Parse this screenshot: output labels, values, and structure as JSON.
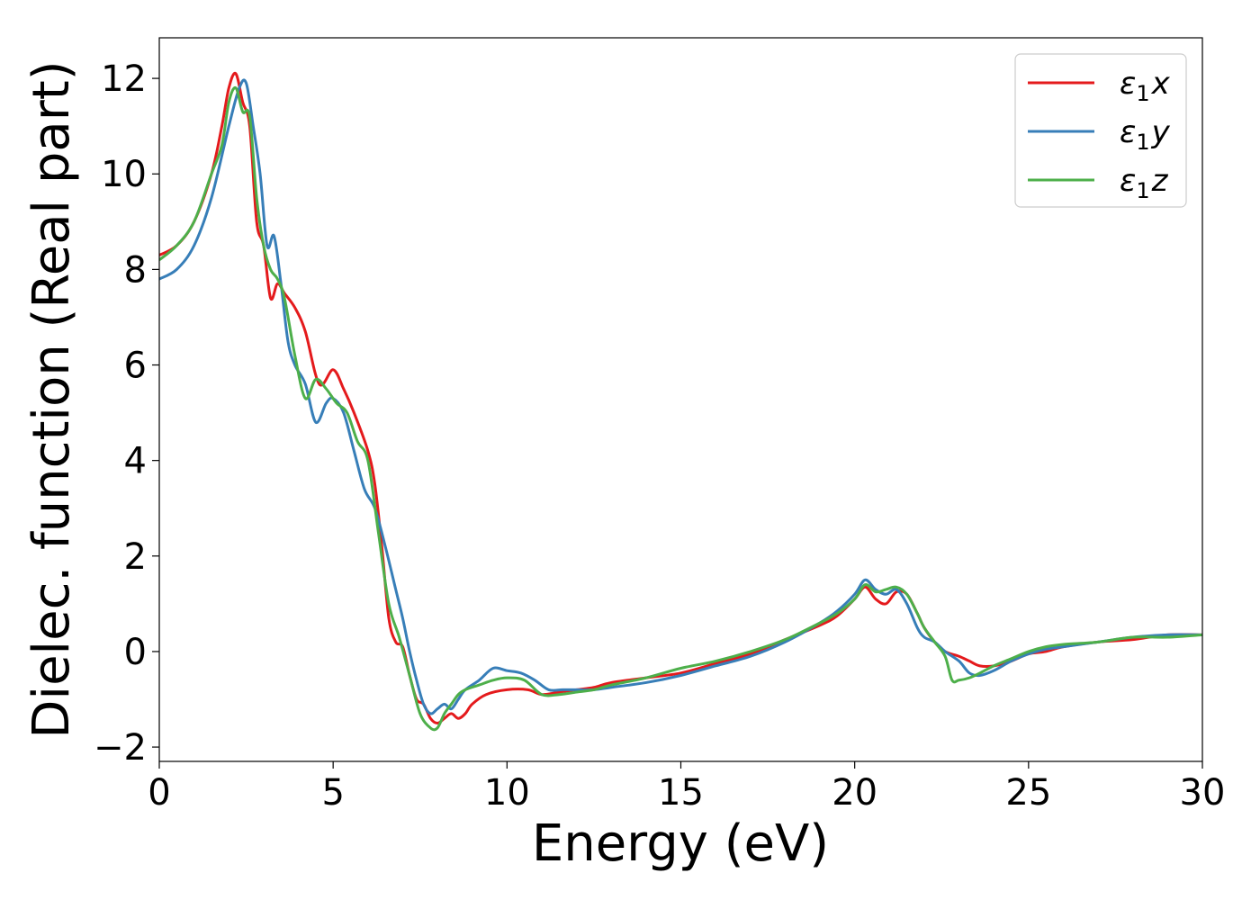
{
  "chart_data": {
    "type": "line",
    "title": "",
    "xlabel": "Energy (eV)",
    "ylabel": "Dielec. function (Real part)",
    "xlim": [
      0,
      30
    ],
    "ylim": [
      -2.3,
      12.85
    ],
    "xticks": [
      0,
      5,
      10,
      15,
      20,
      25,
      30
    ],
    "yticks": [
      -2,
      0,
      2,
      4,
      6,
      8,
      10,
      12
    ],
    "ytick_labels": [
      "−2",
      "0",
      "2",
      "4",
      "6",
      "8",
      "10",
      "12"
    ],
    "xtick_labels": [
      "0",
      "5",
      "10",
      "15",
      "20",
      "25",
      "30"
    ],
    "grid": false,
    "legend_position": "top-right",
    "series": [
      {
        "name": "ε₁x",
        "legend": {
          "base": "ε",
          "sub": "1",
          "var": "x"
        },
        "color": "#e41a1c",
        "x": [
          0,
          0.5,
          1.0,
          1.5,
          1.8,
          2.0,
          2.2,
          2.4,
          2.6,
          2.8,
          3.0,
          3.2,
          3.4,
          3.6,
          3.9,
          4.2,
          4.6,
          5.0,
          5.3,
          5.6,
          6.0,
          6.2,
          6.4,
          6.6,
          6.8,
          7.0,
          7.2,
          7.4,
          7.6,
          7.8,
          8.0,
          8.2,
          8.4,
          8.6,
          8.8,
          9.0,
          9.4,
          10.0,
          10.6,
          11.0,
          11.5,
          12.0,
          12.5,
          13.0,
          14.0,
          15.0,
          16.0,
          17.0,
          18.0,
          19.0,
          19.5,
          20.0,
          20.3,
          20.6,
          20.9,
          21.2,
          21.5,
          21.8,
          22.0,
          22.3,
          22.6,
          23.0,
          23.3,
          23.6,
          24.0,
          24.5,
          25.0,
          25.5,
          26.0,
          27.0,
          28.0,
          29.0,
          30.0
        ],
        "y": [
          8.3,
          8.5,
          9.0,
          10.0,
          11.0,
          11.8,
          12.1,
          11.5,
          11.0,
          9.0,
          8.5,
          7.4,
          7.7,
          7.5,
          7.2,
          6.7,
          5.6,
          5.9,
          5.5,
          5.0,
          4.2,
          3.5,
          2.2,
          0.7,
          0.2,
          0.1,
          -0.5,
          -1.0,
          -1.1,
          -1.4,
          -1.5,
          -1.4,
          -1.3,
          -1.4,
          -1.3,
          -1.1,
          -0.9,
          -0.8,
          -0.8,
          -0.9,
          -0.85,
          -0.8,
          -0.75,
          -0.65,
          -0.55,
          -0.45,
          -0.25,
          -0.05,
          0.25,
          0.55,
          0.75,
          1.1,
          1.35,
          1.1,
          1.0,
          1.25,
          1.2,
          0.8,
          0.5,
          0.2,
          0.0,
          -0.1,
          -0.2,
          -0.3,
          -0.3,
          -0.2,
          -0.05,
          0.0,
          0.1,
          0.2,
          0.25,
          0.35,
          0.35
        ]
      },
      {
        "name": "ε₁y",
        "legend": {
          "base": "ε",
          "sub": "1",
          "var": "y"
        },
        "color": "#377eb8",
        "x": [
          0,
          0.5,
          1.0,
          1.5,
          2.0,
          2.3,
          2.5,
          2.7,
          2.9,
          3.1,
          3.3,
          3.5,
          3.7,
          3.9,
          4.2,
          4.5,
          4.8,
          5.0,
          5.3,
          5.6,
          5.9,
          6.2,
          6.5,
          6.8,
          7.0,
          7.2,
          7.4,
          7.6,
          7.8,
          8.0,
          8.2,
          8.4,
          8.6,
          8.8,
          9.2,
          9.6,
          10.0,
          10.4,
          10.8,
          11.2,
          11.6,
          12.0,
          12.5,
          13.0,
          14.0,
          15.0,
          16.0,
          17.0,
          18.0,
          19.0,
          19.5,
          20.0,
          20.3,
          20.6,
          20.9,
          21.2,
          21.5,
          21.8,
          22.0,
          22.3,
          22.6,
          23.0,
          23.3,
          23.6,
          24.0,
          24.5,
          25.0,
          25.5,
          26.0,
          27.0,
          28.0,
          29.0,
          30.0
        ],
        "y": [
          7.8,
          8.0,
          8.5,
          9.5,
          11.0,
          11.8,
          11.9,
          11.0,
          10.0,
          8.5,
          8.7,
          7.7,
          6.5,
          6.0,
          5.6,
          4.8,
          5.2,
          5.3,
          5.0,
          4.2,
          3.4,
          3.0,
          2.2,
          1.3,
          0.7,
          0.0,
          -0.6,
          -1.1,
          -1.3,
          -1.2,
          -1.1,
          -1.2,
          -1.0,
          -0.8,
          -0.6,
          -0.35,
          -0.4,
          -0.45,
          -0.6,
          -0.8,
          -0.8,
          -0.8,
          -0.8,
          -0.75,
          -0.65,
          -0.5,
          -0.3,
          -0.1,
          0.2,
          0.6,
          0.85,
          1.2,
          1.5,
          1.3,
          1.2,
          1.3,
          1.0,
          0.5,
          0.3,
          0.2,
          0.0,
          -0.2,
          -0.45,
          -0.5,
          -0.4,
          -0.2,
          -0.05,
          0.05,
          0.1,
          0.2,
          0.3,
          0.35,
          0.35
        ]
      },
      {
        "name": "ε₁z",
        "legend": {
          "base": "ε",
          "sub": "1",
          "var": "z"
        },
        "color": "#4daf4a",
        "x": [
          0,
          0.5,
          1.0,
          1.5,
          1.8,
          2.0,
          2.2,
          2.4,
          2.6,
          2.8,
          3.0,
          3.2,
          3.4,
          3.6,
          3.9,
          4.2,
          4.5,
          4.8,
          5.1,
          5.4,
          5.7,
          6.0,
          6.3,
          6.6,
          6.9,
          7.2,
          7.5,
          7.8,
          8.0,
          8.2,
          8.4,
          8.6,
          8.8,
          9.2,
          9.6,
          10.0,
          10.5,
          11.0,
          11.5,
          12.0,
          12.5,
          13.0,
          14.0,
          15.0,
          16.0,
          17.0,
          18.0,
          19.0,
          19.5,
          20.0,
          20.3,
          20.6,
          20.9,
          21.2,
          21.5,
          21.8,
          22.0,
          22.3,
          22.6,
          22.8,
          23.0,
          23.3,
          23.6,
          24.0,
          24.5,
          25.0,
          25.5,
          26.0,
          27.0,
          28.0,
          29.0,
          30.0
        ],
        "y": [
          8.2,
          8.5,
          9.0,
          10.0,
          10.6,
          11.5,
          11.8,
          11.3,
          11.2,
          9.5,
          8.5,
          8.0,
          7.8,
          7.4,
          6.2,
          5.3,
          5.7,
          5.5,
          5.2,
          5.0,
          4.4,
          4.0,
          2.5,
          1.0,
          0.3,
          -0.5,
          -1.3,
          -1.6,
          -1.6,
          -1.3,
          -1.1,
          -0.9,
          -0.8,
          -0.7,
          -0.6,
          -0.55,
          -0.6,
          -0.9,
          -0.9,
          -0.85,
          -0.8,
          -0.7,
          -0.55,
          -0.35,
          -0.2,
          0.0,
          0.25,
          0.6,
          0.8,
          1.1,
          1.4,
          1.25,
          1.3,
          1.35,
          1.2,
          0.8,
          0.5,
          0.2,
          -0.1,
          -0.6,
          -0.6,
          -0.55,
          -0.45,
          -0.3,
          -0.15,
          0.0,
          0.1,
          0.15,
          0.2,
          0.3,
          0.3,
          0.35
        ]
      }
    ]
  }
}
